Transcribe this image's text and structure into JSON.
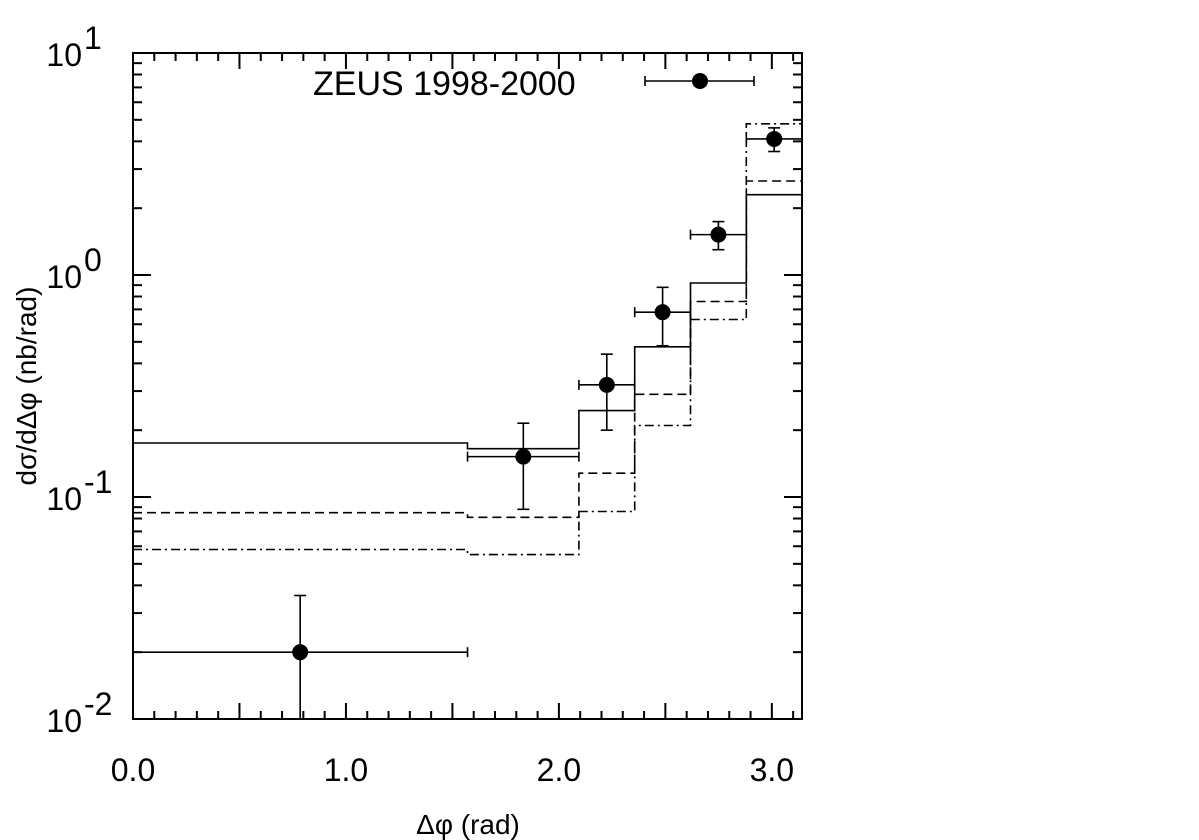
{
  "chart_data": {
    "type": "scatter",
    "title": "",
    "xlabel": "Δφ (rad)",
    "ylabel": "dσ/dΔφ (nb/rad)",
    "x_scale": "linear",
    "y_scale": "log",
    "xlim": [
      0.0,
      3.1416
    ],
    "ylim": [
      0.01,
      10
    ],
    "x_ticks": [
      {
        "value": 0.0,
        "label": "0.0"
      },
      {
        "value": 1.0,
        "label": "1.0"
      },
      {
        "value": 2.0,
        "label": "2.0"
      },
      {
        "value": 3.0,
        "label": "3.0"
      }
    ],
    "y_ticks": [
      {
        "value": 0.01,
        "base": "10",
        "exp": "-2"
      },
      {
        "value": 0.1,
        "base": "10",
        "exp": "-1"
      },
      {
        "value": 1,
        "base": "10",
        "exp": "0"
      },
      {
        "value": 10,
        "base": "10",
        "exp": "1"
      }
    ],
    "legend": {
      "position": "top",
      "entries": [
        {
          "label": "ZEUS 1998-2000",
          "marker": "filled-circle-with-xerror"
        }
      ]
    },
    "data_points": [
      {
        "x": 0.785,
        "y": 0.02,
        "x_low": 0.0,
        "x_high": 1.571,
        "y_low": 0.01,
        "y_high": 0.036
      },
      {
        "x": 1.833,
        "y": 0.152,
        "x_low": 1.571,
        "x_high": 2.094,
        "y_low": 0.088,
        "y_high": 0.215
      },
      {
        "x": 2.225,
        "y": 0.32,
        "x_low": 2.094,
        "x_high": 2.356,
        "y_low": 0.2,
        "y_high": 0.44
      },
      {
        "x": 2.487,
        "y": 0.68,
        "x_low": 2.356,
        "x_high": 2.618,
        "y_low": 0.48,
        "y_high": 0.88
      },
      {
        "x": 2.749,
        "y": 1.52,
        "x_low": 2.618,
        "x_high": 2.88,
        "y_low": 1.3,
        "y_high": 1.74
      },
      {
        "x": 3.011,
        "y": 4.1,
        "x_low": 2.88,
        "x_high": 3.1416,
        "y_low": 3.6,
        "y_high": 4.6
      }
    ],
    "histograms": [
      {
        "style": "solid",
        "edges": [
          0.0,
          1.571,
          2.094,
          2.356,
          2.618,
          2.88,
          3.1416
        ],
        "values": [
          0.175,
          0.165,
          0.245,
          0.475,
          0.92,
          2.3
        ]
      },
      {
        "style": "dashed",
        "edges": [
          0.0,
          1.571,
          2.094,
          2.356,
          2.618,
          2.88,
          3.1416
        ],
        "values": [
          0.085,
          0.081,
          0.128,
          0.29,
          0.76,
          2.65
        ]
      },
      {
        "style": "dash-dot",
        "edges": [
          0.0,
          1.571,
          2.094,
          2.356,
          2.618,
          2.88,
          3.1416
        ],
        "values": [
          0.058,
          0.055,
          0.086,
          0.21,
          0.63,
          4.8
        ]
      }
    ]
  }
}
